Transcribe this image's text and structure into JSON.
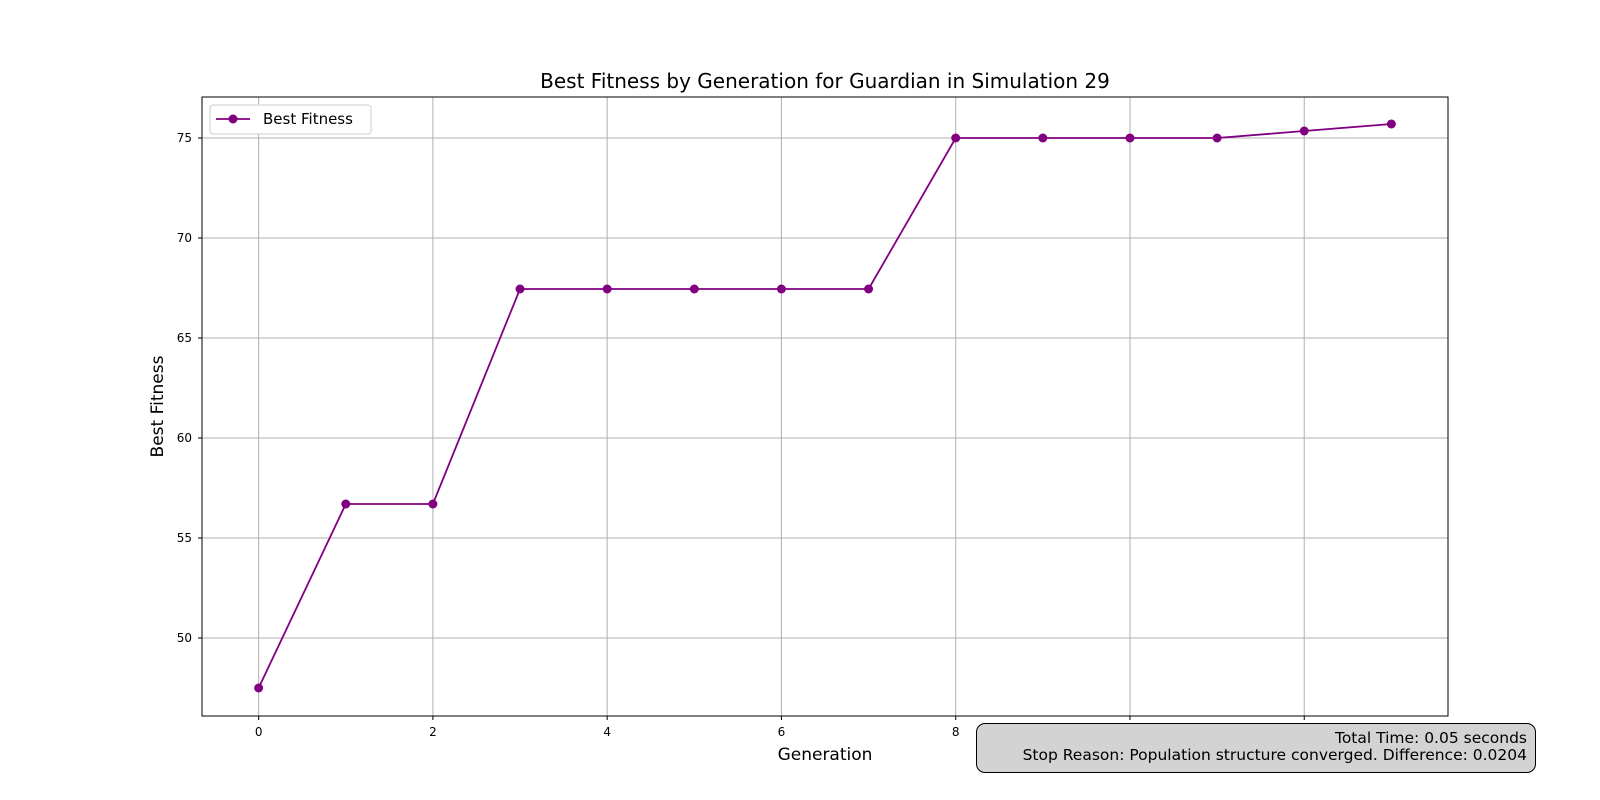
{
  "chart_data": {
    "type": "line",
    "title": "Best Fitness by Generation for Guardian in Simulation 29",
    "xlabel": "Generation",
    "ylabel": "Best Fitness",
    "x": [
      0,
      1,
      2,
      3,
      4,
      5,
      6,
      7,
      8,
      9,
      10,
      11,
      12,
      13
    ],
    "series": [
      {
        "name": "Best Fitness",
        "color": "#800080",
        "marker": "circle",
        "values": [
          47.5,
          56.7,
          56.7,
          67.45,
          67.45,
          67.45,
          67.45,
          67.45,
          75.0,
          75.0,
          75.0,
          75.0,
          75.35,
          75.7
        ]
      }
    ],
    "xlim": [
      -0.65,
      13.65
    ],
    "ylim": [
      46.1,
      77.05
    ],
    "x_ticks": [
      0,
      2,
      4,
      6,
      8,
      10,
      12
    ],
    "x_tick_labels": [
      "0",
      "2",
      "4",
      "6",
      "8",
      "",
      ""
    ],
    "y_ticks": [
      50,
      55,
      60,
      65,
      70,
      75
    ],
    "y_tick_labels": [
      "50",
      "55",
      "60",
      "65",
      "70",
      "75"
    ],
    "grid": true,
    "legend_position": "top-left"
  },
  "info_box": {
    "total_time": "Total Time: 0.05 seconds",
    "stop_reason": "Stop Reason: Population structure converged. Difference: 0.0204"
  }
}
